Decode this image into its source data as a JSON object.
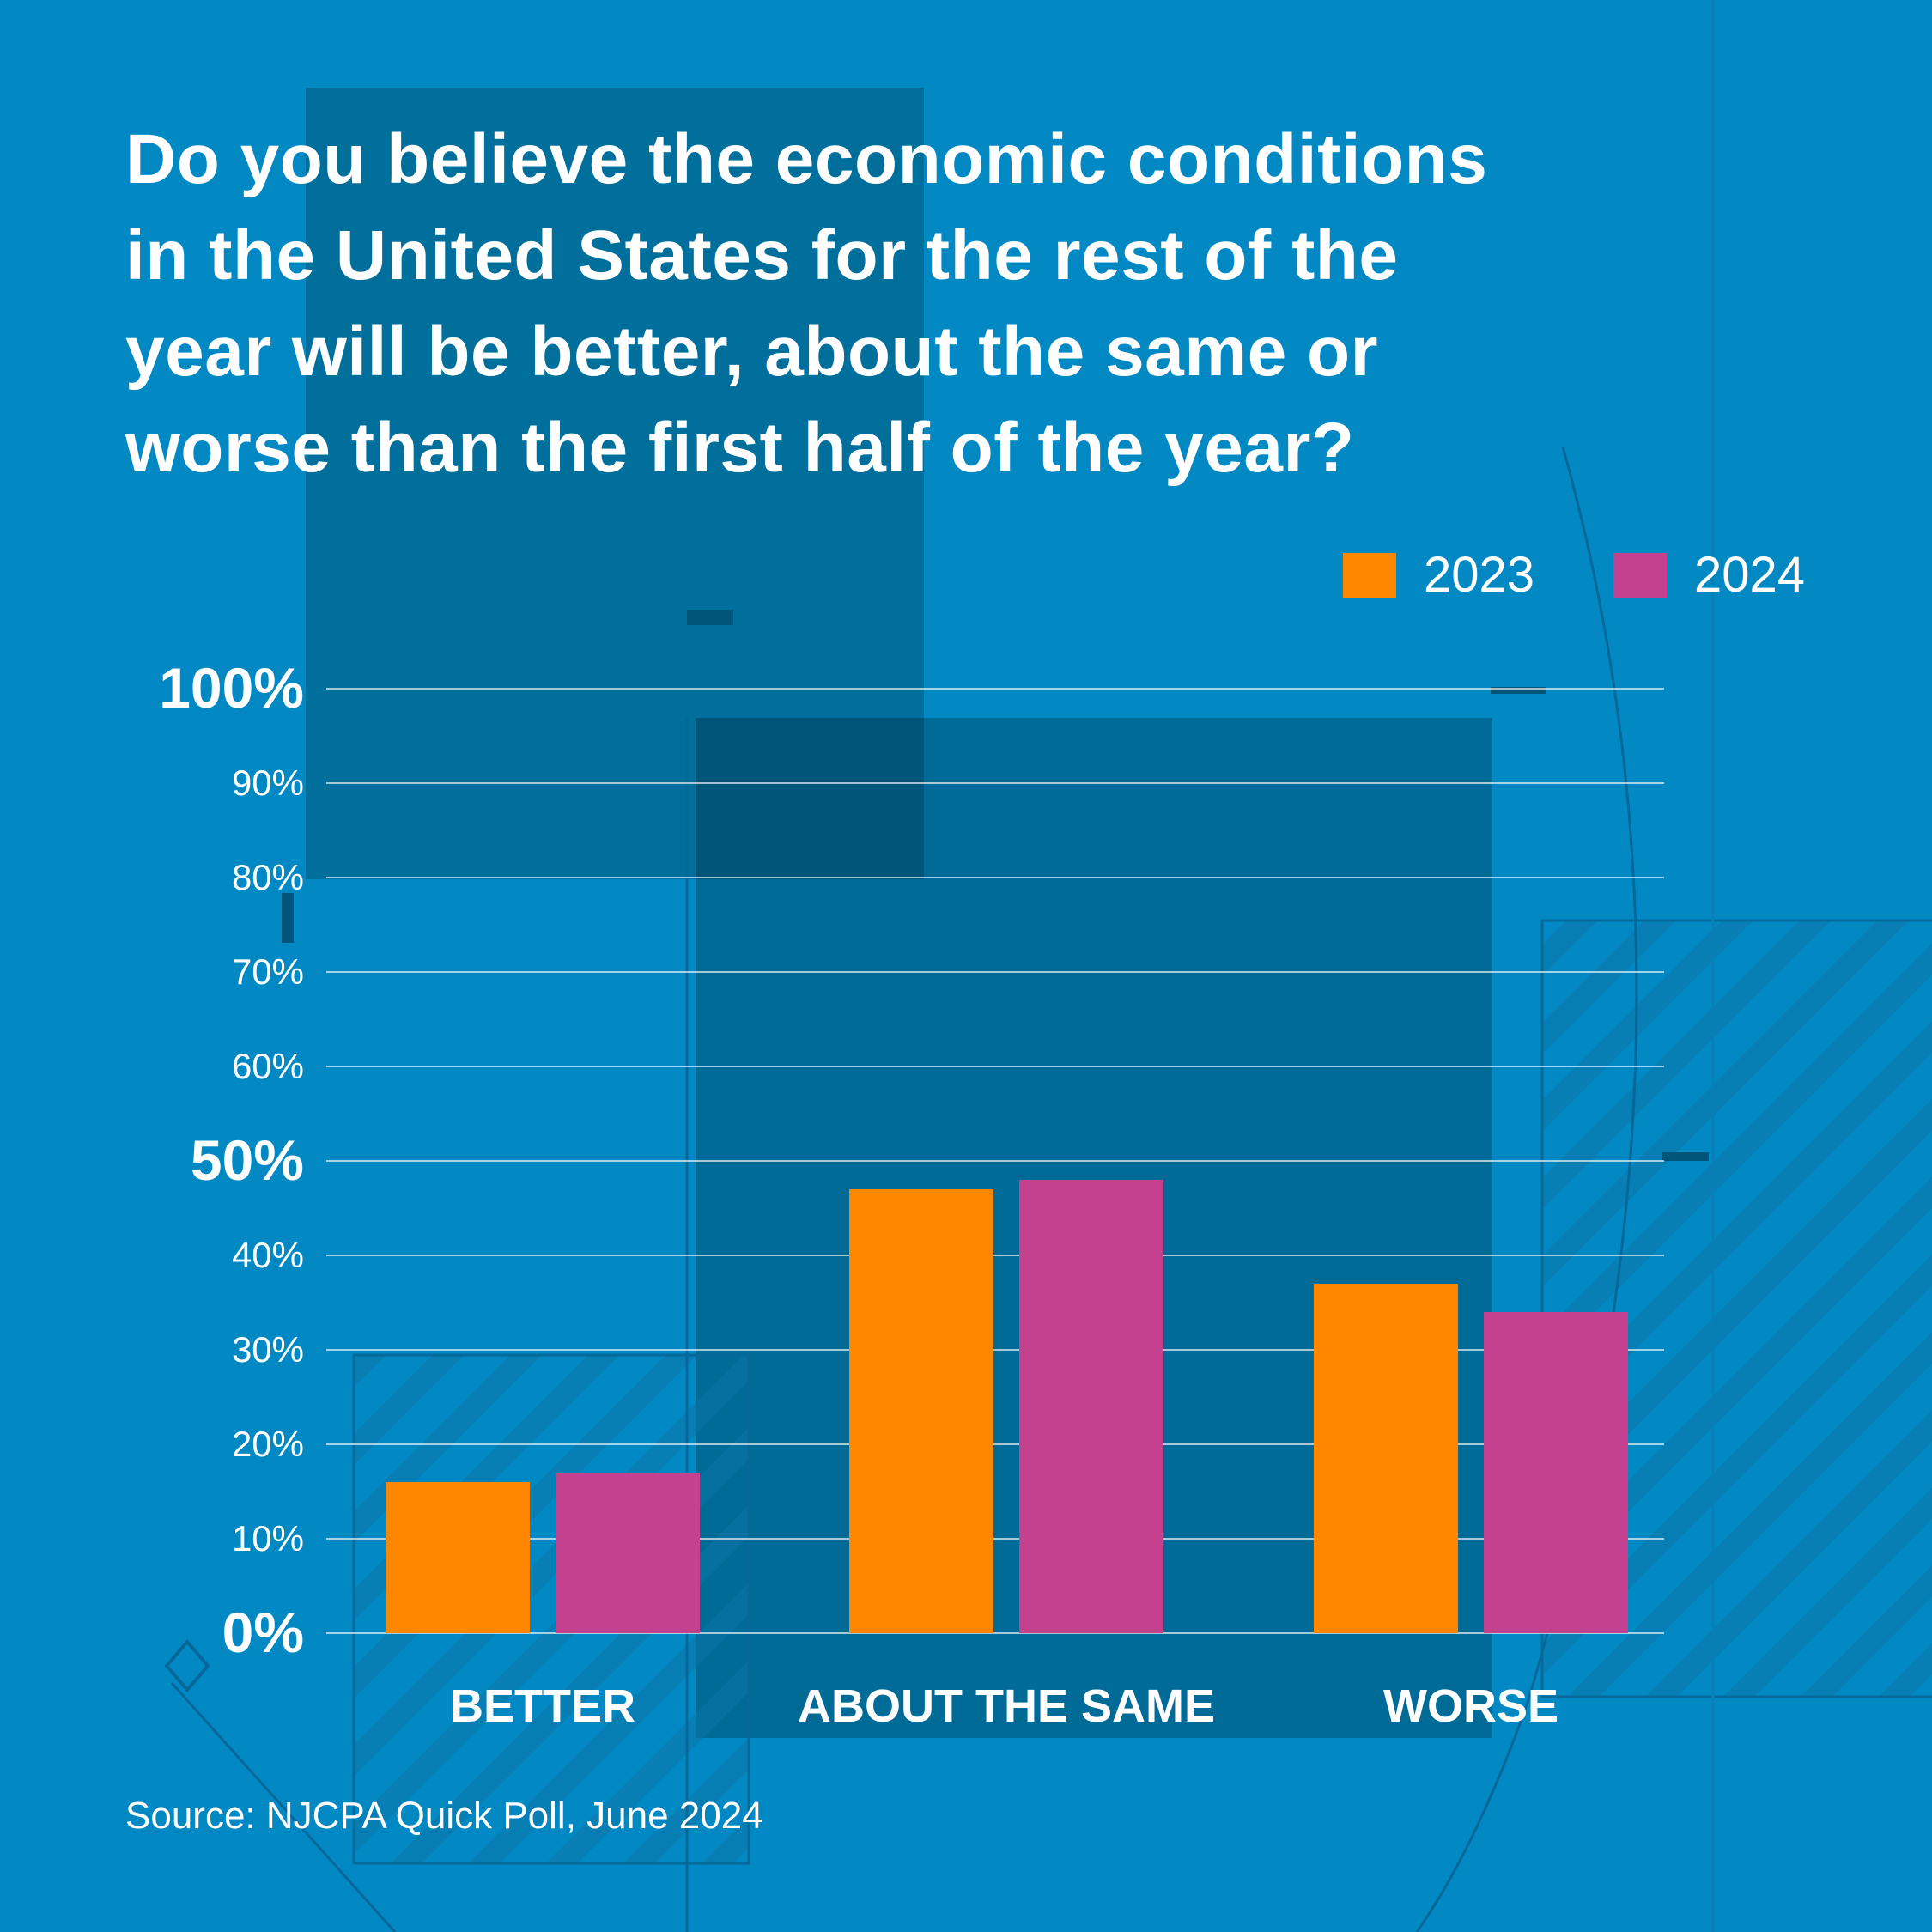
{
  "title": "Do you believe the economic conditions\nin the United States for the rest of the\nyear will be better, about the same or\nworse than the first half of the year?",
  "source": "Source: NJCPA Quick Poll, June 2024",
  "colors": {
    "background": "#0289c4",
    "series_2023": "#ff8700",
    "series_2024": "#c4418f",
    "text": "#ffffff",
    "gridline": "#ffffff"
  },
  "chart_data": {
    "type": "bar",
    "categories": [
      "BETTER",
      "ABOUT THE SAME",
      "WORSE"
    ],
    "series": [
      {
        "name": "2023",
        "values": [
          16,
          47,
          37
        ]
      },
      {
        "name": "2024",
        "values": [
          17,
          48,
          34
        ]
      }
    ],
    "ylim": [
      0,
      100
    ],
    "yticks": [
      {
        "value": 0,
        "label": "0%",
        "emphasis": true
      },
      {
        "value": 10,
        "label": "10%",
        "emphasis": false
      },
      {
        "value": 20,
        "label": "20%",
        "emphasis": false
      },
      {
        "value": 30,
        "label": "30%",
        "emphasis": false
      },
      {
        "value": 40,
        "label": "40%",
        "emphasis": false
      },
      {
        "value": 50,
        "label": "50%",
        "emphasis": true
      },
      {
        "value": 60,
        "label": "60%",
        "emphasis": false
      },
      {
        "value": 70,
        "label": "70%",
        "emphasis": false
      },
      {
        "value": 80,
        "label": "80%",
        "emphasis": false
      },
      {
        "value": 90,
        "label": "90%",
        "emphasis": false
      },
      {
        "value": 100,
        "label": "100%",
        "emphasis": true
      }
    ],
    "grid": true,
    "legend_position": "top-right"
  }
}
